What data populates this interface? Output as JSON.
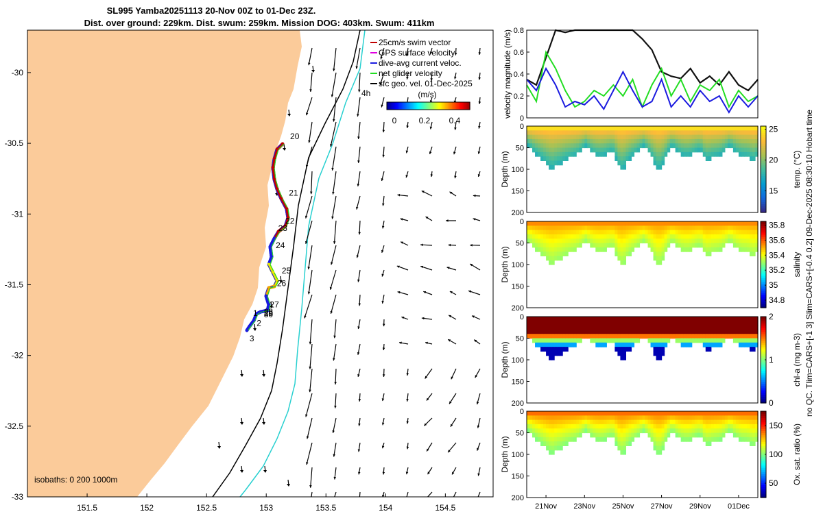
{
  "title_line1": "SL995 Yamba20251113 20-Nov 00Z to 01-Dec 23Z.",
  "title_line2": "Dist. over ground: 229km. Dist. swum: 259km. Mission DOG: 403km. Swum: 411km",
  "side_caption": "no QC. Tlim=CARS+[-1 3] Slim=CARS+[-0.4 0.2] 09-Dec-2025 08:30:10 Hobart time",
  "colors": {
    "land": "#fbcb9a",
    "isobath_200": "#000000",
    "isobath_1000": "#28d0d0",
    "speed_line": "#111111",
    "green": "#22dd22",
    "blue": "#1a1adf",
    "track_red": "#c00000",
    "track_orange": "#f2a400",
    "track_yellow": "#e8e800"
  },
  "chart_data": [
    {
      "type": "map",
      "name": "glider track map",
      "xlim": [
        151.0,
        154.9
      ],
      "ylim": [
        -33.0,
        -29.7
      ],
      "xticks": [
        "151.5",
        "152",
        "152.5",
        "153",
        "153.5",
        "154",
        "154.5"
      ],
      "yticks": [
        "-30",
        "-30.5",
        "-31",
        "-31.5",
        "-32",
        "-32.5",
        "-33"
      ],
      "legend": [
        "25cm/s swim vector",
        "GPS surface velocity",
        "dive-avg current veloc.",
        "net glider velocity",
        "sfc geo. vel. 01-Dec-2025"
      ],
      "legend_extra": "4h",
      "colorbar": {
        "title": "(m/s)",
        "ticks": [
          "0",
          "0.2",
          "0.4"
        ],
        "range": [
          -0.05,
          0.5
        ]
      },
      "isobaths_label": "isobaths: 0   200  1000m",
      "day_labels": [
        {
          "text": "20",
          "lon": 153.2,
          "lat": -30.47
        },
        {
          "text": "21",
          "lon": 153.19,
          "lat": -30.87
        },
        {
          "text": "22",
          "lon": 153.16,
          "lat": -31.07
        },
        {
          "text": "23",
          "lon": 153.1,
          "lat": -31.12
        },
        {
          "text": "24",
          "lon": 153.08,
          "lat": -31.24
        },
        {
          "text": "25",
          "lon": 153.13,
          "lat": -31.42
        },
        {
          "text": "26",
          "lon": 153.09,
          "lat": -31.51
        },
        {
          "text": "27",
          "lon": 153.03,
          "lat": -31.66
        },
        {
          "text": "28",
          "lon": 152.98,
          "lat": -31.71
        },
        {
          "text": "29",
          "lon": 152.98,
          "lat": -31.72
        },
        {
          "text": "30",
          "lon": 152.98,
          "lat": -31.73
        },
        {
          "text": "1",
          "lon": 152.89,
          "lat": -31.72
        },
        {
          "text": "2",
          "lon": 152.92,
          "lat": -31.79
        },
        {
          "text": "3",
          "lon": 152.86,
          "lat": -31.9
        }
      ]
    },
    {
      "type": "line",
      "name": "velocity magnitude",
      "ylabel": "velocity magnitude (m/s)",
      "ylim": [
        0,
        0.8
      ],
      "yticks": [
        "0",
        "0.2",
        "0.4",
        "0.6",
        "0.8"
      ],
      "x_days": [
        0,
        0.5,
        1,
        1.5,
        2,
        2.5,
        3,
        3.5,
        4,
        4.5,
        5,
        5.5,
        6,
        6.5,
        7,
        7.5,
        8,
        8.5,
        9,
        9.5,
        10,
        10.5,
        11,
        11.5,
        12
      ],
      "series": [
        {
          "name": "black",
          "values": [
            0.35,
            0.3,
            0.55,
            0.82,
            0.78,
            0.82,
            0.82,
            0.82,
            0.8,
            0.82,
            0.8,
            0.82,
            0.72,
            0.62,
            0.42,
            0.38,
            0.36,
            0.45,
            0.32,
            0.38,
            0.3,
            0.42,
            0.3,
            0.25,
            0.35
          ]
        },
        {
          "name": "green",
          "values": [
            0.3,
            0.15,
            0.6,
            0.45,
            0.25,
            0.1,
            0.15,
            0.25,
            0.2,
            0.3,
            0.2,
            0.35,
            0.1,
            0.3,
            0.45,
            0.2,
            0.35,
            0.15,
            0.3,
            0.25,
            0.35,
            0.1,
            0.25,
            0.15,
            0.2
          ]
        },
        {
          "name": "blue",
          "values": [
            0.35,
            0.25,
            0.45,
            0.3,
            0.1,
            0.15,
            0.12,
            0.2,
            0.08,
            0.25,
            0.42,
            0.25,
            0.1,
            0.15,
            0.35,
            0.1,
            0.2,
            0.1,
            0.25,
            0.15,
            0.2,
            0.05,
            0.2,
            0.1,
            0.2
          ]
        }
      ]
    },
    {
      "type": "heatmap",
      "name": "temperature section",
      "ylabel": "Depth (m)",
      "cblabel": "temp. (°C)",
      "ylim": [
        0,
        200
      ],
      "yticks": [
        "0",
        "50",
        "100",
        "150",
        "200"
      ],
      "cbticks": [
        "15",
        "20",
        "25"
      ],
      "cbrange": [
        11.5,
        25.5
      ],
      "surface_value": 24.5,
      "bottom_value": 17.5,
      "colormap": "parula"
    },
    {
      "type": "heatmap",
      "name": "salinity section",
      "ylabel": "Depth (m)",
      "cblabel": "salinity",
      "ylim": [
        0,
        200
      ],
      "yticks": [
        "0",
        "50",
        "100",
        "150",
        "200"
      ],
      "cbticks": [
        "34.8",
        "35",
        "35.2",
        "35.4",
        "35.6",
        "35.8"
      ],
      "cbrange": [
        34.7,
        35.85
      ],
      "surface_value": 35.55,
      "bottom_value": 35.3,
      "colormap": "jet"
    },
    {
      "type": "heatmap",
      "name": "chlorophyll section",
      "ylabel": "Depth (m)",
      "cblabel": "chl-a (mg m-3)",
      "ylim": [
        0,
        200
      ],
      "yticks": [
        "0",
        "50",
        "100",
        "150",
        "200"
      ],
      "cbticks": [
        "0",
        "1",
        "2"
      ],
      "cbrange": [
        0,
        2
      ],
      "surface_value": 2.0,
      "bottom_value": 0.1,
      "colormap": "jet"
    },
    {
      "type": "heatmap",
      "name": "oxygen saturation section",
      "ylabel": "Depth (m)",
      "cblabel": "Ox. sat. ratio (%)",
      "ylim": [
        0,
        200
      ],
      "yticks": [
        "0",
        "50",
        "100",
        "150",
        "200"
      ],
      "cbticks": [
        "50",
        "100",
        "150"
      ],
      "cbrange": [
        25,
        175
      ],
      "surface_value": 140,
      "bottom_value": 100,
      "colormap": "jet"
    }
  ],
  "time_axis": {
    "labels": [
      "21Nov",
      "23Nov",
      "25Nov",
      "27Nov",
      "29Nov",
      "01Dec"
    ],
    "label_days": [
      1,
      3,
      5,
      7,
      9,
      11
    ]
  }
}
